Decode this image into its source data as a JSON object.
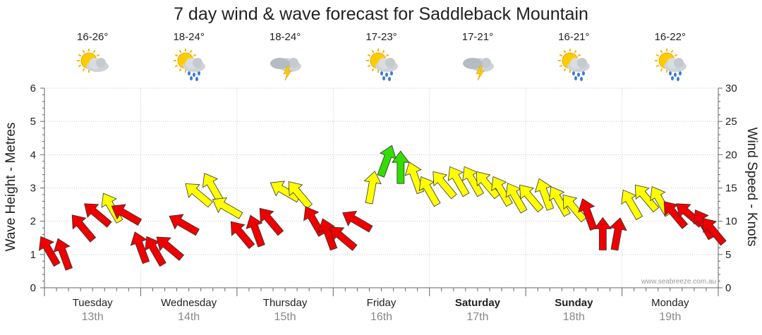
{
  "chart_data": {
    "type": "line",
    "title": "7 day wind & wave forecast for Saddleback Mountain",
    "ylabel_left": "Wave Height - Metres",
    "ylabel_right": "Wind Speed - Knots",
    "ylim_left": [
      0,
      6
    ],
    "ylim_right": [
      0,
      30
    ],
    "yticks_left": [
      "0",
      "1",
      "2",
      "3",
      "4",
      "5",
      "6"
    ],
    "yticks_right": [
      "0",
      "5",
      "10",
      "15",
      "20",
      "25",
      "30"
    ],
    "watermark": "www.seabreeze.com.au",
    "days": [
      {
        "name": "Tuesday",
        "date": "13th",
        "temp": "16-26°",
        "weather": "partly-cloudy",
        "bold": false
      },
      {
        "name": "Wednesday",
        "date": "14th",
        "temp": "18-24°",
        "weather": "showers",
        "bold": false
      },
      {
        "name": "Thursday",
        "date": "15th",
        "temp": "18-24°",
        "weather": "storm",
        "bold": false
      },
      {
        "name": "Friday",
        "date": "16th",
        "temp": "17-23°",
        "weather": "showers",
        "bold": false
      },
      {
        "name": "Saturday",
        "date": "17th",
        "temp": "17-21°",
        "weather": "storm",
        "bold": true
      },
      {
        "name": "Sunday",
        "date": "18th",
        "temp": "16-21°",
        "weather": "showers",
        "bold": true
      },
      {
        "name": "Monday",
        "date": "19th",
        "temp": "16-22°",
        "weather": "showers",
        "bold": false
      }
    ],
    "wind_color_legend": {
      "light": "#33dd00",
      "moderate": "#ffff00",
      "strong": "#ee0000"
    },
    "series": [
      {
        "name": "Wind Speed (knots)",
        "axis": "right",
        "x_days": [
          0.05,
          0.2,
          0.4,
          0.55,
          0.7,
          0.85,
          1.0,
          1.15,
          1.3,
          1.45,
          1.6,
          1.75,
          1.9,
          2.05,
          2.2,
          2.35,
          2.5,
          2.65,
          2.8,
          2.95,
          3.1,
          3.25,
          3.4,
          3.55,
          3.7,
          3.85,
          4.0,
          4.15,
          4.3,
          4.45,
          4.6,
          4.75,
          4.9,
          5.05,
          5.2,
          5.35,
          5.5,
          5.65,
          5.8,
          5.95,
          6.1,
          6.25,
          6.4,
          6.55,
          6.7,
          6.85,
          6.95
        ],
        "values": [
          5.5,
          5,
          9,
          11,
          12,
          11,
          6,
          5.5,
          6,
          9.5,
          14,
          15,
          12,
          8,
          8.5,
          10,
          14.5,
          14,
          10,
          8,
          7.5,
          10,
          15,
          19,
          18,
          16.5,
          14.5,
          15.5,
          16,
          16,
          15.5,
          14.5,
          13.5,
          13.5,
          14,
          13,
          12,
          11,
          8,
          8,
          12.5,
          13.5,
          13,
          11,
          11,
          9.5,
          8.5
        ],
        "direction_deg": [
          330,
          340,
          320,
          310,
          330,
          300,
          340,
          330,
          310,
          300,
          310,
          330,
          300,
          320,
          340,
          320,
          300,
          320,
          330,
          340,
          310,
          300,
          10,
          20,
          0,
          340,
          330,
          320,
          330,
          330,
          320,
          330,
          330,
          320,
          340,
          330,
          320,
          340,
          0,
          10,
          330,
          320,
          330,
          320,
          310,
          330,
          320
        ]
      }
    ]
  }
}
